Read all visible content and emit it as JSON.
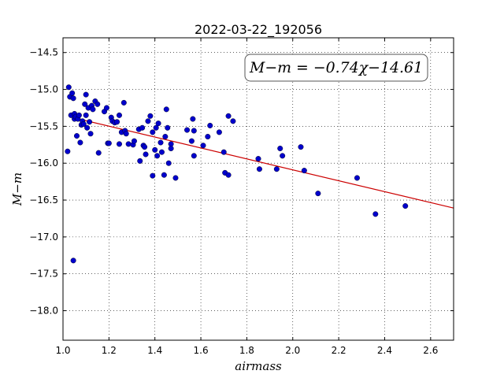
{
  "chart_data": {
    "type": "scatter",
    "title": "2022-03-22_192056",
    "xlabel": "airmass",
    "ylabel": "M−m",
    "xlim": [
      1.0,
      2.7
    ],
    "ylim": [
      -18.4,
      -14.3
    ],
    "y_inverted": true,
    "grid": true,
    "x_ticks": [
      1.0,
      1.2,
      1.4,
      1.6,
      1.8,
      2.0,
      2.2,
      2.4,
      2.6
    ],
    "x_tick_labels": [
      "1.0",
      "1.2",
      "1.4",
      "1.6",
      "1.8",
      "2.0",
      "2.2",
      "2.4",
      "2.6"
    ],
    "y_ticks": [
      -14.5,
      -15.0,
      -15.5,
      -16.0,
      -16.5,
      -17.0,
      -17.5,
      -18.0
    ],
    "y_tick_labels": [
      "−14.5",
      "−15.0",
      "−15.5",
      "−16.0",
      "−16.5",
      "−17.0",
      "−17.5",
      "−18.0"
    ],
    "annotation": "M−m = −0.74χ−14.61",
    "annotation_location": "top-right",
    "fit": {
      "slope": -0.74,
      "intercept": -14.61,
      "x_range": [
        1.08,
        2.7
      ],
      "color": "#cc0000"
    },
    "point_color": "#0000cc",
    "points": [
      [
        1.02,
        -15.84
      ],
      [
        1.025,
        -14.97
      ],
      [
        1.03,
        -15.1
      ],
      [
        1.035,
        -15.35
      ],
      [
        1.04,
        -15.05
      ],
      [
        1.045,
        -15.12
      ],
      [
        1.05,
        -15.33
      ],
      [
        1.05,
        -15.4
      ],
      [
        1.055,
        -15.37
      ],
      [
        1.06,
        -15.63
      ],
      [
        1.065,
        -15.4
      ],
      [
        1.07,
        -15.35
      ],
      [
        1.075,
        -15.72
      ],
      [
        1.08,
        -15.48
      ],
      [
        1.085,
        -15.43
      ],
      [
        1.09,
        -15.47
      ],
      [
        1.095,
        -15.2
      ],
      [
        1.1,
        -15.07
      ],
      [
        1.1,
        -15.35
      ],
      [
        1.105,
        -15.52
      ],
      [
        1.11,
        -15.25
      ],
      [
        1.115,
        -15.44
      ],
      [
        1.12,
        -15.6
      ],
      [
        1.125,
        -15.22
      ],
      [
        1.13,
        -15.27
      ],
      [
        1.14,
        -15.16
      ],
      [
        1.15,
        -15.2
      ],
      [
        1.155,
        -15.86
      ],
      [
        1.18,
        -15.3
      ],
      [
        1.19,
        -15.25
      ],
      [
        1.195,
        -15.73
      ],
      [
        1.2,
        -15.73
      ],
      [
        1.21,
        -15.38
      ],
      [
        1.215,
        -15.43
      ],
      [
        1.225,
        -15.45
      ],
      [
        1.235,
        -15.44
      ],
      [
        1.245,
        -15.35
      ],
      [
        1.245,
        -15.74
      ],
      [
        1.255,
        -15.58
      ],
      [
        1.265,
        -15.18
      ],
      [
        1.27,
        -15.56
      ],
      [
        1.275,
        -15.6
      ],
      [
        1.285,
        -15.74
      ],
      [
        1.305,
        -15.75
      ],
      [
        1.31,
        -15.7
      ],
      [
        1.33,
        -15.54
      ],
      [
        1.335,
        -15.97
      ],
      [
        1.345,
        -15.52
      ],
      [
        1.35,
        -15.76
      ],
      [
        1.355,
        -15.78
      ],
      [
        1.36,
        -15.88
      ],
      [
        1.37,
        -15.43
      ],
      [
        1.38,
        -15.36
      ],
      [
        1.39,
        -16.17
      ],
      [
        1.39,
        -15.58
      ],
      [
        1.4,
        -15.82
      ],
      [
        1.405,
        -15.52
      ],
      [
        1.41,
        -15.9
      ],
      [
        1.415,
        -15.46
      ],
      [
        1.425,
        -15.72
      ],
      [
        1.43,
        -15.85
      ],
      [
        1.44,
        -16.16
      ],
      [
        1.445,
        -15.64
      ],
      [
        1.45,
        -15.27
      ],
      [
        1.455,
        -15.52
      ],
      [
        1.46,
        -16.0
      ],
      [
        1.47,
        -15.74
      ],
      [
        1.47,
        -15.8
      ],
      [
        1.49,
        -16.2
      ],
      [
        1.54,
        -15.55
      ],
      [
        1.56,
        -15.7
      ],
      [
        1.565,
        -15.4
      ],
      [
        1.57,
        -15.56
      ],
      [
        1.57,
        -15.9
      ],
      [
        1.61,
        -15.76
      ],
      [
        1.63,
        -15.64
      ],
      [
        1.64,
        -15.49
      ],
      [
        1.68,
        -15.58
      ],
      [
        1.7,
        -15.85
      ],
      [
        1.705,
        -16.13
      ],
      [
        1.72,
        -15.36
      ],
      [
        1.72,
        -16.16
      ],
      [
        1.74,
        -15.43
      ],
      [
        1.85,
        -15.94
      ],
      [
        1.855,
        -16.08
      ],
      [
        1.93,
        -16.08
      ],
      [
        1.945,
        -15.8
      ],
      [
        1.955,
        -15.9
      ],
      [
        2.035,
        -15.78
      ],
      [
        2.05,
        -16.1
      ],
      [
        2.11,
        -16.41
      ],
      [
        2.28,
        -16.2
      ],
      [
        2.36,
        -16.69
      ],
      [
        2.49,
        -16.58
      ],
      [
        1.045,
        -17.32
      ]
    ]
  }
}
